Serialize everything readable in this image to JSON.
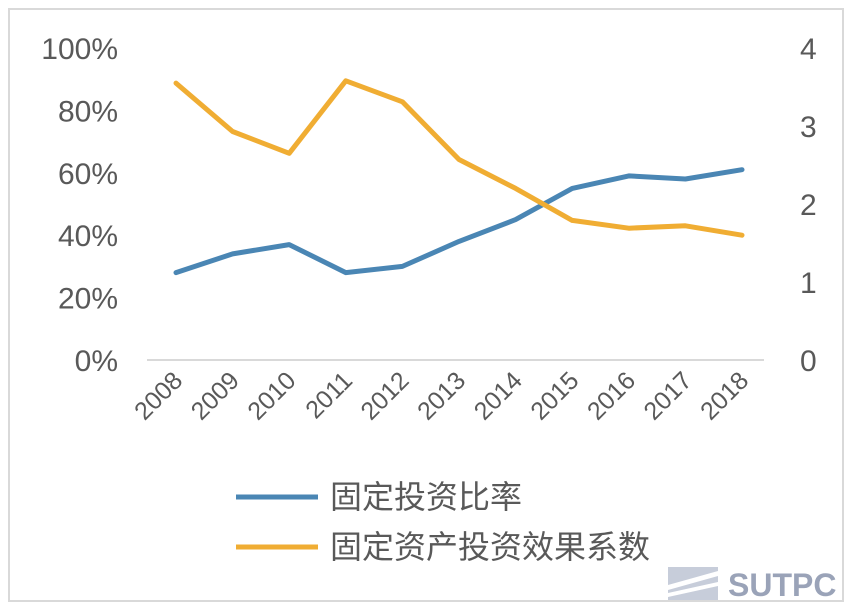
{
  "chart_data": {
    "type": "line",
    "x": [
      "2008",
      "2009",
      "2010",
      "2011",
      "2012",
      "2013",
      "2014",
      "2015",
      "2016",
      "2017",
      "2018"
    ],
    "series": [
      {
        "name": "固定投资比率",
        "axis": "left",
        "color": "#4a86b4",
        "values": [
          28,
          34,
          37,
          28,
          30,
          38,
          45,
          55,
          59,
          58,
          61
        ]
      },
      {
        "name": "固定资产投资效果系数",
        "axis": "right",
        "color": "#f0ad33",
        "values": [
          3.55,
          2.93,
          2.65,
          3.58,
          3.31,
          2.57,
          2.2,
          1.79,
          1.69,
          1.72,
          1.6
        ]
      }
    ],
    "y_left": {
      "ticks": [
        "100%",
        "80%",
        "60%",
        "40%",
        "20%",
        "0%"
      ],
      "range": [
        0,
        100
      ]
    },
    "y_right": {
      "ticks": [
        "4",
        "3",
        "2",
        "1",
        "0"
      ],
      "range": [
        0,
        4
      ]
    },
    "grid": false,
    "legend_position": "bottom"
  },
  "watermark": {
    "text": "SUTPC"
  }
}
